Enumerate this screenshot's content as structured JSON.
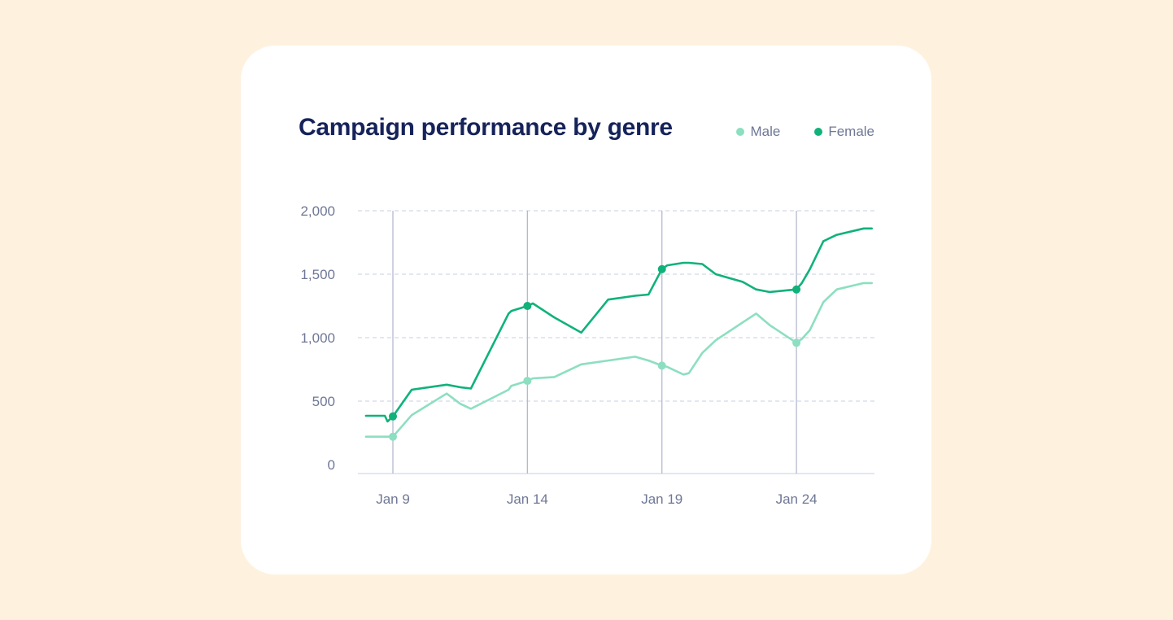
{
  "chart_data": {
    "type": "line",
    "title": "Campaign performance by genre",
    "xlabel": "",
    "ylabel": "",
    "x": [
      8,
      8.3,
      8.5,
      8.7,
      8.8,
      9,
      9.7,
      11,
      11.5,
      11.9,
      13.3,
      13.4,
      14,
      14.2,
      15,
      16,
      17,
      18,
      18.5,
      19,
      19.2,
      19.8,
      20,
      20.5,
      21,
      22,
      22.5,
      23,
      24,
      24.2,
      24.5,
      25,
      25.5,
      26.5,
      26.8
    ],
    "xlim": [
      7.7,
      26.9
    ],
    "ylim": [
      -70,
      2000
    ],
    "series": [
      {
        "name": "Male",
        "color": "#8CDFC0",
        "values": [
          220,
          220,
          220,
          220,
          220,
          220,
          390,
          560,
          480,
          440,
          590,
          620,
          660,
          680,
          690,
          790,
          820,
          850,
          820,
          780,
          770,
          710,
          720,
          880,
          980,
          1120,
          1190,
          1100,
          960,
          990,
          1060,
          1280,
          1380,
          1430,
          1430
        ],
        "markers_at": [
          9,
          14,
          19,
          24
        ]
      },
      {
        "name": "Female",
        "color": "#10B27A",
        "values": [
          385,
          385,
          385,
          385,
          340,
          380,
          590,
          630,
          610,
          600,
          1190,
          1210,
          1250,
          1270,
          1160,
          1040,
          1300,
          1330,
          1340,
          1540,
          1570,
          1590,
          1590,
          1580,
          1500,
          1440,
          1380,
          1360,
          1380,
          1430,
          1540,
          1760,
          1810,
          1860,
          1860
        ],
        "markers_at": [
          9,
          14,
          19,
          24
        ]
      }
    ],
    "yticks": [
      0,
      500,
      1000,
      1500,
      2000
    ],
    "ytick_labels": [
      "0",
      "500",
      "1,000",
      "1,500",
      "2,000"
    ],
    "xticks": [
      9,
      14,
      19,
      24
    ],
    "xtick_labels": [
      "Jan 9",
      "Jan 14",
      "Jan 19",
      "Jan 24"
    ],
    "legend_position": "top-right",
    "grid": true
  },
  "colors": {
    "male": "#8CDFC0",
    "female": "#10B27A",
    "grid": "#C9CFE3",
    "vline": "#B4B9CF"
  }
}
